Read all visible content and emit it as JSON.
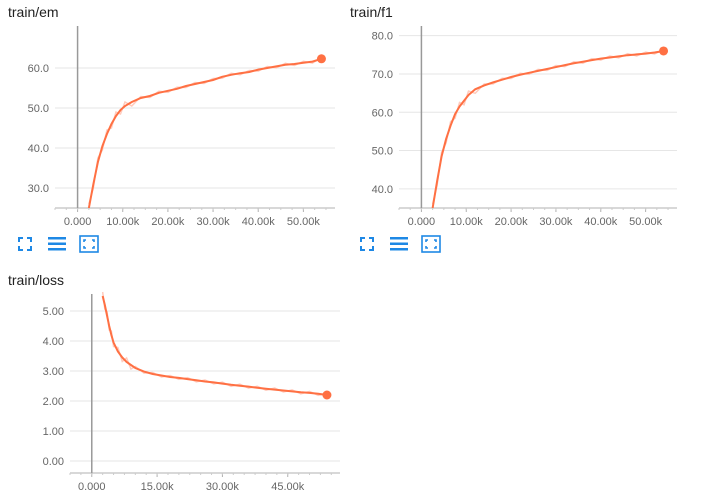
{
  "colors": {
    "line": "#ff7043",
    "line_raw": "#ffcbbd",
    "axis": "#b0b0b0",
    "grid": "#e6e6e6",
    "tick_text": "#666666",
    "icon": "#1e88e5"
  },
  "icons": [
    "fullscreen-icon",
    "list-icon",
    "fit-domain-icon"
  ],
  "chart_data": [
    {
      "type": "line",
      "title": "train/em",
      "x_ticks": [
        "0.000",
        "10.00k",
        "20.00k",
        "30.00k",
        "40.00k",
        "50.00k"
      ],
      "y_ticks": [
        "30.0",
        "40.0",
        "50.0",
        "60.0"
      ],
      "xlim": [
        -5000,
        57000
      ],
      "ylim": [
        25.0,
        70.0
      ],
      "series": [
        {
          "values_x": [
            2500,
            3500,
            4500,
            5500,
            6500,
            7500,
            8500,
            9500,
            10500,
            12000,
            14000,
            16000,
            18000,
            20000,
            22000,
            24000,
            26000,
            28000,
            30000,
            32000,
            34000,
            36000,
            38000,
            40000,
            42000,
            44000,
            46000,
            48000,
            50000,
            52000,
            54000
          ],
          "values_y": [
            25.0,
            31.0,
            36.5,
            40.5,
            43.5,
            46.0,
            48.0,
            49.5,
            50.5,
            51.5,
            52.5,
            53.0,
            53.8,
            54.3,
            54.8,
            55.5,
            56.0,
            56.5,
            57.0,
            57.8,
            58.3,
            58.7,
            59.0,
            59.6,
            60.0,
            60.4,
            60.8,
            61.0,
            61.3,
            61.6,
            62.3
          ]
        }
      ]
    },
    {
      "type": "line",
      "title": "train/f1",
      "x_ticks": [
        "0.000",
        "10.00k",
        "20.00k",
        "30.00k",
        "40.00k",
        "50.00k"
      ],
      "y_ticks": [
        "40.0",
        "50.0",
        "60.0",
        "70.0",
        "80.0"
      ],
      "xlim": [
        -5000,
        57000
      ],
      "ylim": [
        35.0,
        82.0
      ],
      "series": [
        {
          "values_x": [
            2500,
            3500,
            4500,
            5500,
            6500,
            7500,
            8500,
            9500,
            10500,
            12000,
            14000,
            16000,
            18000,
            20000,
            22000,
            24000,
            26000,
            28000,
            30000,
            32000,
            34000,
            36000,
            38000,
            40000,
            42000,
            44000,
            46000,
            48000,
            50000,
            52000,
            54000
          ],
          "values_y": [
            35.0,
            42.0,
            48.5,
            53.0,
            56.5,
            59.5,
            61.5,
            63.0,
            64.5,
            66.0,
            67.0,
            67.8,
            68.5,
            69.2,
            69.8,
            70.3,
            70.8,
            71.3,
            71.8,
            72.3,
            72.8,
            73.2,
            73.6,
            74.0,
            74.3,
            74.6,
            74.9,
            75.1,
            75.3,
            75.6,
            76.0
          ]
        }
      ]
    },
    {
      "type": "line",
      "title": "train/loss",
      "x_ticks": [
        "0.000",
        "15.00k",
        "30.00k",
        "45.00k"
      ],
      "y_ticks": [
        "0.00",
        "1.00",
        "2.00",
        "3.00",
        "4.00",
        "5.00"
      ],
      "xlim": [
        -5000,
        57000
      ],
      "ylim": [
        -0.4,
        5.5
      ],
      "series": [
        {
          "values_x": [
            2500,
            3000,
            3500,
            4000,
            4500,
            5000,
            6000,
            7000,
            8000,
            9000,
            10000,
            12000,
            14000,
            16000,
            18000,
            20000,
            22000,
            24000,
            26000,
            28000,
            30000,
            32000,
            34000,
            36000,
            38000,
            40000,
            42000,
            44000,
            46000,
            48000,
            50000,
            52000,
            54000
          ],
          "values_y": [
            5.5,
            5.2,
            4.85,
            4.5,
            4.2,
            3.95,
            3.65,
            3.45,
            3.3,
            3.2,
            3.1,
            2.98,
            2.9,
            2.85,
            2.8,
            2.77,
            2.73,
            2.69,
            2.65,
            2.62,
            2.58,
            2.54,
            2.51,
            2.48,
            2.44,
            2.41,
            2.38,
            2.35,
            2.32,
            2.29,
            2.27,
            2.24,
            2.2
          ]
        }
      ]
    }
  ]
}
